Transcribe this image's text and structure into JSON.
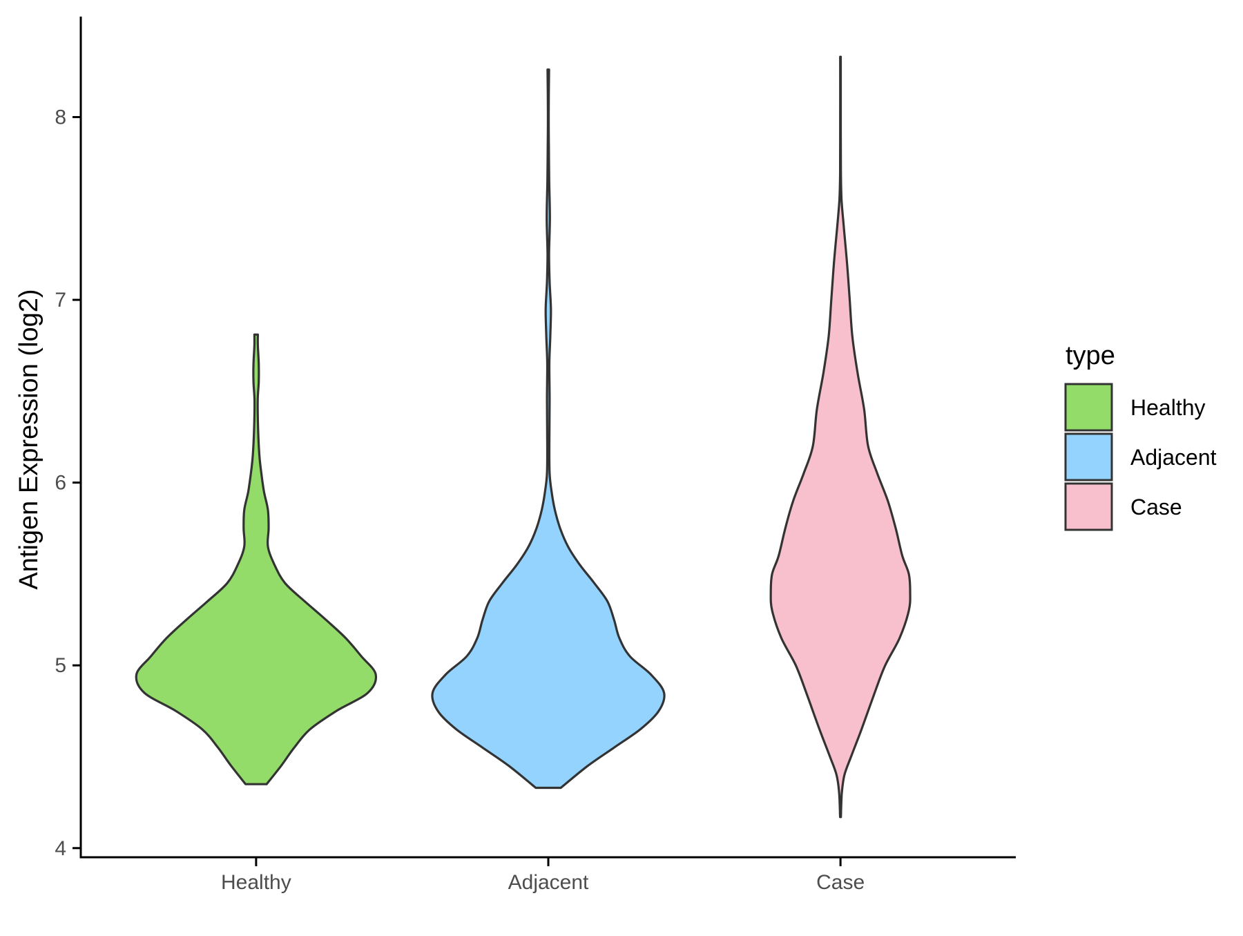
{
  "chart_data": {
    "type": "violin",
    "categories": [
      "Healthy",
      "Adjacent",
      "Case"
    ],
    "ylabel": "Antigen Expression (log2)",
    "xlabel": "",
    "ylim": [
      3.95,
      8.55
    ],
    "yticks": [
      4,
      5,
      6,
      7,
      8
    ],
    "grid": false,
    "legend": {
      "title": "type",
      "position": "right",
      "items": [
        {
          "label": "Healthy",
          "color": "#93dc6a"
        },
        {
          "label": "Adjacent",
          "color": "#93d3fe"
        },
        {
          "label": "Case",
          "color": "#f7c0cc"
        }
      ]
    },
    "series": [
      {
        "category": "Healthy",
        "color": "#93dc6a",
        "min": 4.35,
        "max": 6.81,
        "density_profile": [
          [
            4.35,
            0.08
          ],
          [
            4.45,
            0.19
          ],
          [
            4.55,
            0.29
          ],
          [
            4.65,
            0.41
          ],
          [
            4.75,
            0.61
          ],
          [
            4.85,
            0.85
          ],
          [
            4.95,
            0.91
          ],
          [
            5.05,
            0.8
          ],
          [
            5.15,
            0.68
          ],
          [
            5.25,
            0.53
          ],
          [
            5.35,
            0.37
          ],
          [
            5.45,
            0.22
          ],
          [
            5.55,
            0.14
          ],
          [
            5.65,
            0.09
          ],
          [
            5.75,
            0.095
          ],
          [
            5.85,
            0.09
          ],
          [
            5.95,
            0.06
          ],
          [
            6.05,
            0.04
          ],
          [
            6.15,
            0.025
          ],
          [
            6.3,
            0.015
          ],
          [
            6.45,
            0.012
          ],
          [
            6.55,
            0.02
          ],
          [
            6.65,
            0.02
          ],
          [
            6.75,
            0.013
          ],
          [
            6.81,
            0.013
          ]
        ]
      },
      {
        "category": "Adjacent",
        "color": "#93d3fe",
        "min": 4.33,
        "max": 8.26,
        "density_profile": [
          [
            4.33,
            0.095
          ],
          [
            4.45,
            0.3
          ],
          [
            4.55,
            0.5
          ],
          [
            4.65,
            0.7
          ],
          [
            4.75,
            0.84
          ],
          [
            4.85,
            0.88
          ],
          [
            4.95,
            0.78
          ],
          [
            5.05,
            0.62
          ],
          [
            5.15,
            0.54
          ],
          [
            5.25,
            0.5
          ],
          [
            5.35,
            0.45
          ],
          [
            5.45,
            0.35
          ],
          [
            5.55,
            0.24
          ],
          [
            5.65,
            0.15
          ],
          [
            5.75,
            0.09
          ],
          [
            5.85,
            0.05
          ],
          [
            5.95,
            0.025
          ],
          [
            6.05,
            0.01
          ],
          [
            6.2,
            0.008
          ],
          [
            6.45,
            0.01
          ],
          [
            6.65,
            0.008
          ],
          [
            6.8,
            0.015
          ],
          [
            6.95,
            0.02
          ],
          [
            7.1,
            0.01
          ],
          [
            7.25,
            0.006
          ],
          [
            7.45,
            0.012
          ],
          [
            7.65,
            0.007
          ],
          [
            7.85,
            0.004
          ],
          [
            8.05,
            0.003
          ],
          [
            8.26,
            0.006
          ]
        ]
      },
      {
        "category": "Case",
        "color": "#f7c0cc",
        "min": 4.17,
        "max": 8.33,
        "density_profile": [
          [
            4.17,
            0.003
          ],
          [
            4.3,
            0.01
          ],
          [
            4.4,
            0.03
          ],
          [
            4.5,
            0.08
          ],
          [
            4.65,
            0.16
          ],
          [
            4.85,
            0.26
          ],
          [
            5.0,
            0.34
          ],
          [
            5.15,
            0.45
          ],
          [
            5.3,
            0.52
          ],
          [
            5.4,
            0.53
          ],
          [
            5.5,
            0.52
          ],
          [
            5.6,
            0.47
          ],
          [
            5.75,
            0.42
          ],
          [
            5.9,
            0.36
          ],
          [
            6.05,
            0.28
          ],
          [
            6.2,
            0.21
          ],
          [
            6.4,
            0.18
          ],
          [
            6.6,
            0.13
          ],
          [
            6.8,
            0.09
          ],
          [
            7.0,
            0.07
          ],
          [
            7.2,
            0.05
          ],
          [
            7.4,
            0.025
          ],
          [
            7.55,
            0.008
          ],
          [
            7.7,
            0.003
          ],
          [
            8.0,
            0.002
          ],
          [
            8.33,
            0.002
          ]
        ]
      }
    ]
  }
}
